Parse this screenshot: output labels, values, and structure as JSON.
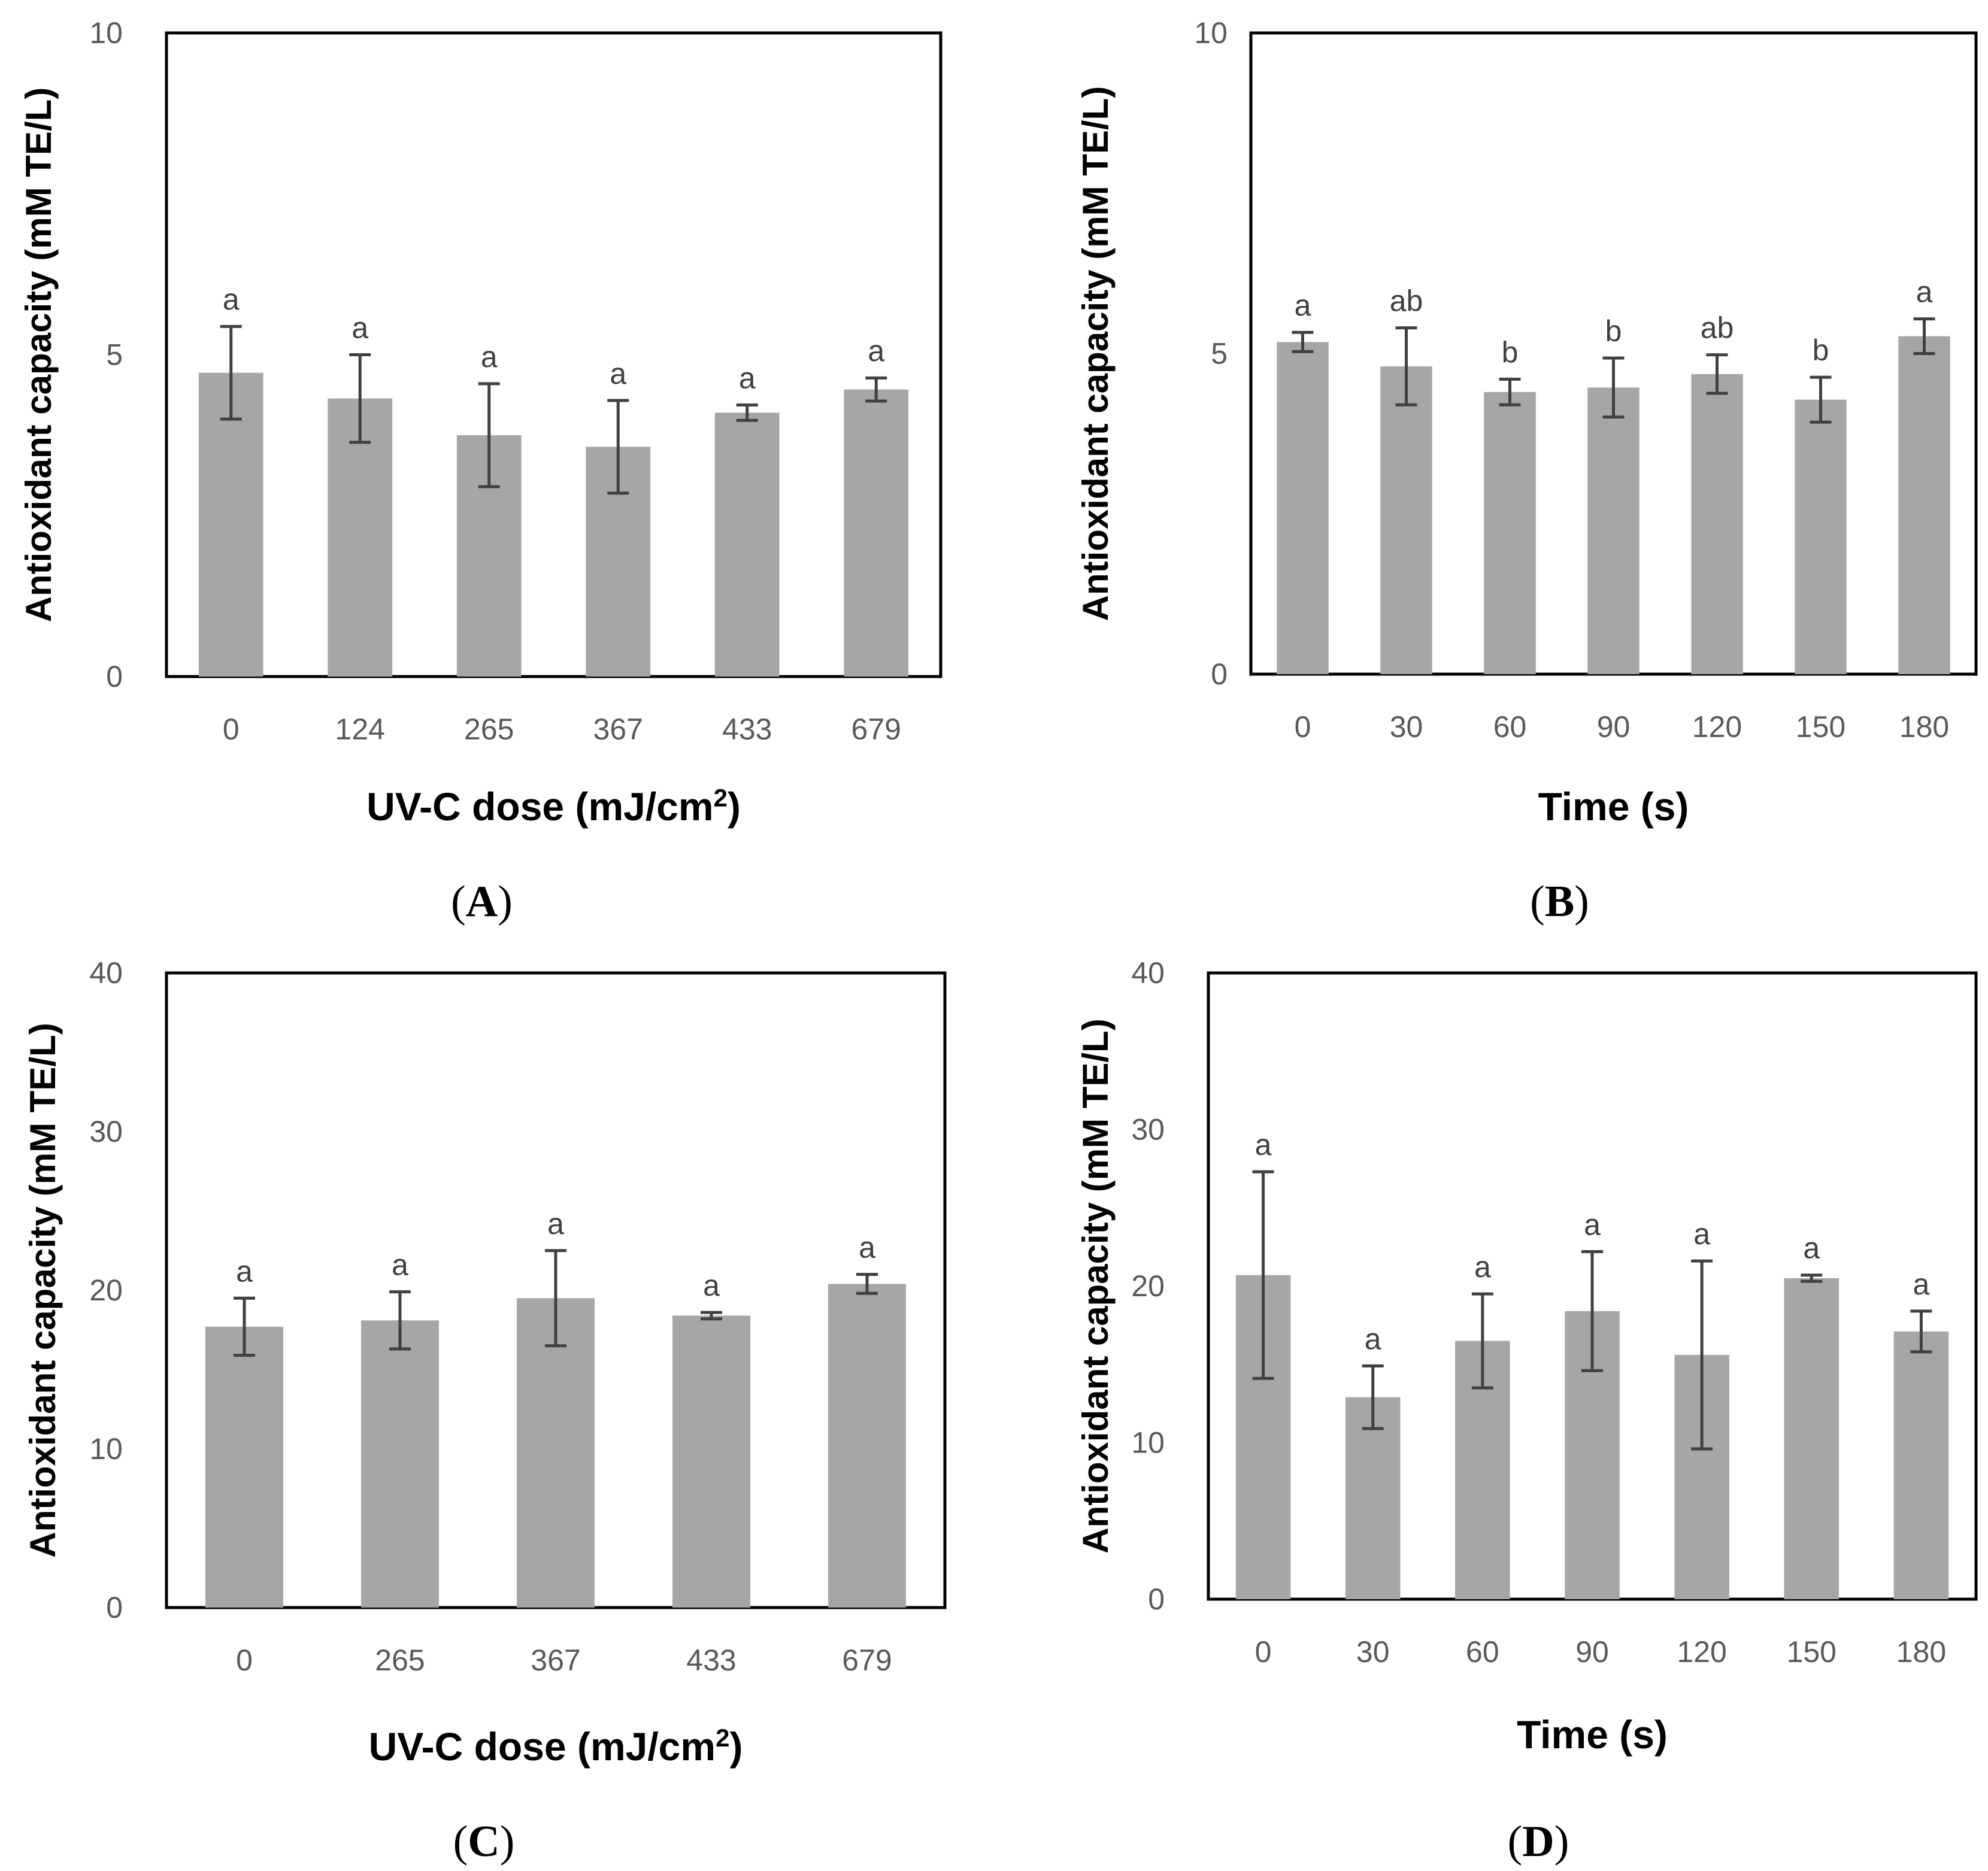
{
  "colors": {
    "bar": "#a6a6a6",
    "error_bar": "#404040",
    "axis": "#000000",
    "tick_text": "#595959"
  },
  "chart_data": [
    {
      "id": "A",
      "panel_label": "A",
      "type": "bar",
      "title": "",
      "xlabel": "UV-C dose (mJ/cm",
      "xlabel_sup": "2",
      "xlabel_end": ")",
      "ylabel": "Antioxidant capacity  (mM TE/L)",
      "ylim": [
        0,
        10
      ],
      "yticks": [
        0,
        5,
        10
      ],
      "categories": [
        "0",
        "124",
        "265",
        "367",
        "433",
        "679"
      ],
      "values": [
        4.72,
        4.32,
        3.75,
        3.57,
        4.1,
        4.46
      ],
      "errors": [
        0.72,
        0.68,
        0.8,
        0.72,
        0.12,
        0.18
      ],
      "significance": [
        "a",
        "a",
        "a",
        "a",
        "a",
        "a"
      ]
    },
    {
      "id": "B",
      "panel_label": "B",
      "type": "bar",
      "title": "",
      "xlabel": "Time (s)",
      "xlabel_sup": "",
      "xlabel_end": "",
      "ylabel": "Antioxidant capacity (mM TE/L)",
      "ylim": [
        0,
        10
      ],
      "yticks": [
        0,
        5,
        10
      ],
      "categories": [
        "0",
        "30",
        "60",
        "90",
        "120",
        "150",
        "180"
      ],
      "values": [
        5.18,
        4.8,
        4.4,
        4.47,
        4.68,
        4.28,
        5.27
      ],
      "errors": [
        0.15,
        0.6,
        0.2,
        0.46,
        0.3,
        0.35,
        0.27
      ],
      "significance": [
        "a",
        "ab",
        "b",
        "b",
        "ab",
        "b",
        "a"
      ]
    },
    {
      "id": "C",
      "panel_label": "C",
      "type": "bar",
      "title": "",
      "xlabel": "UV-C dose (mJ/cm",
      "xlabel_sup": "2",
      "xlabel_end": ")",
      "ylabel": "Antioxidant capacity (mM TE/L)",
      "ylim": [
        0,
        40
      ],
      "yticks": [
        0,
        10,
        20,
        30,
        40
      ],
      "categories": [
        "0",
        "265",
        "367",
        "433",
        "679"
      ],
      "values": [
        17.7,
        18.1,
        19.5,
        18.4,
        20.4
      ],
      "errors": [
        1.8,
        1.8,
        3.0,
        0.2,
        0.6
      ],
      "significance": [
        "a",
        "a",
        "a",
        "a",
        "a"
      ]
    },
    {
      "id": "D",
      "panel_label": "D",
      "type": "bar",
      "title": "",
      "xlabel": "Time (s)",
      "xlabel_sup": "",
      "xlabel_end": "",
      "ylabel": "Antioxidant capacity  (mM TE/L)",
      "ylim": [
        0,
        40
      ],
      "yticks": [
        0,
        10,
        20,
        30,
        40
      ],
      "categories": [
        "0",
        "30",
        "60",
        "90",
        "120",
        "150",
        "180"
      ],
      "values": [
        20.7,
        12.9,
        16.5,
        18.4,
        15.6,
        20.5,
        17.1
      ],
      "errors": [
        6.6,
        2.0,
        3.0,
        3.8,
        6.0,
        0.2,
        1.3
      ],
      "significance": [
        "a",
        "a",
        "a",
        "a",
        "a",
        "a",
        "a"
      ]
    }
  ]
}
